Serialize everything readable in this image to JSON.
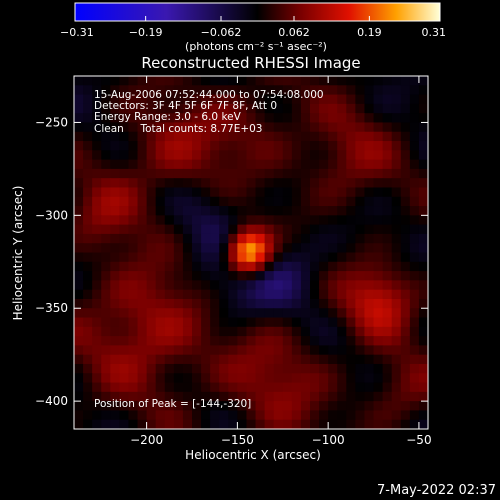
{
  "chart_data": {
    "type": "heatmap",
    "title": "Reconstructed RHESSI Image",
    "xlabel": "Heliocentric X (arcsec)",
    "ylabel": "Heliocentric Y (arcsec)",
    "xlim": [
      -240,
      -45
    ],
    "ylim": [
      -415,
      -225
    ],
    "x_ticks": [
      -200,
      -150,
      -100,
      -50
    ],
    "y_ticks": [
      -250,
      -300,
      -350,
      -400
    ],
    "colorbar": {
      "unit_label": "(photons cm⁻² s⁻¹ asec⁻²)",
      "range": [
        -0.31,
        0.31
      ],
      "tick_values": [
        -0.31,
        -0.19,
        -0.062,
        0.062,
        0.19,
        0.31
      ],
      "tick_labels": [
        "-0.31",
        "-0.19",
        "-0.062",
        "0.062",
        "0.19",
        "0.31"
      ]
    },
    "annotations": [
      "15-Aug-2006 07:52:44.000 to 07:54:08.000",
      "Detectors: 3F 4F 5F 6F 7F 8F, Att 0",
      "Energy Range: 3.0 - 6.0 keV",
      "Clean     Total counts: 8.77E+03"
    ],
    "peak_label": "Position of Peak = [-144,-320]",
    "peak": {
      "x": -144,
      "y": -320,
      "value": 0.31
    },
    "features": [
      {
        "x": -144,
        "y": -320,
        "value": 0.31,
        "sigma": 9
      },
      {
        "x": -72,
        "y": -345,
        "value": 0.12,
        "sigma": 14
      },
      {
        "x": -200,
        "y": -360,
        "value": 0.1,
        "sigma": 25
      },
      {
        "x": -185,
        "y": -270,
        "value": 0.08,
        "sigma": 22
      },
      {
        "x": -90,
        "y": -270,
        "value": 0.07,
        "sigma": 18
      },
      {
        "x": -130,
        "y": -390,
        "value": 0.07,
        "sigma": 22
      },
      {
        "x": -225,
        "y": -300,
        "value": 0.06,
        "sigma": 14
      },
      {
        "x": -60,
        "y": -395,
        "value": 0.06,
        "sigma": 14
      },
      {
        "x": -140,
        "y": -250,
        "value": 0.05,
        "sigma": 18
      },
      {
        "x": -150,
        "y": -335,
        "value": -0.08,
        "sigma": 16
      },
      {
        "x": -170,
        "y": -300,
        "value": -0.05,
        "sigma": 18
      },
      {
        "x": -120,
        "y": -330,
        "value": -0.05,
        "sigma": 14
      }
    ]
  },
  "footer": {
    "timestamp": "7-May-2022 02:37"
  },
  "colors": {
    "background": "#000000",
    "text": "#ffffff"
  }
}
